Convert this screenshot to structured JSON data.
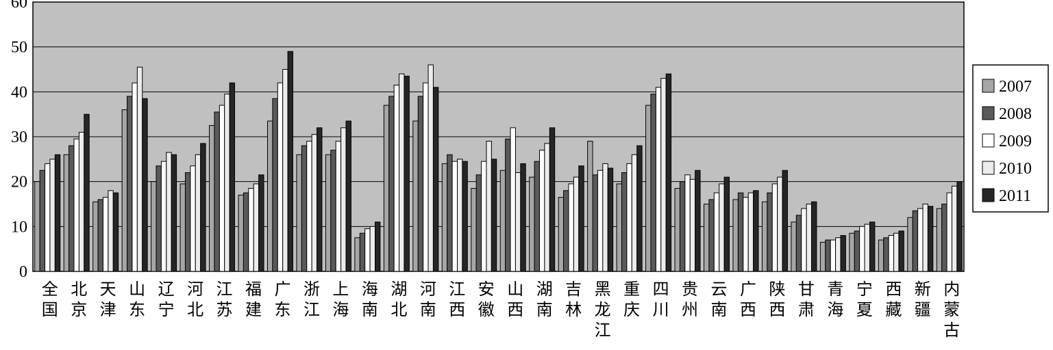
{
  "chart_data": {
    "type": "bar",
    "categories": [
      "全国",
      "北京",
      "天津",
      "山东",
      "辽宁",
      "河北",
      "江苏",
      "福建",
      "广东",
      "浙江",
      "上海",
      "海南",
      "湖北",
      "河南",
      "江西",
      "安徽",
      "山西",
      "湖南",
      "吉林",
      "黑龙江",
      "重庆",
      "四川",
      "贵州",
      "云南",
      "广西",
      "陕西",
      "甘肃",
      "青海",
      "宁夏",
      "西藏",
      "新疆",
      "内蒙古"
    ],
    "series": [
      {
        "name": "2007",
        "color": "#a6a6a6",
        "values": [
          20,
          26,
          15.5,
          36,
          20,
          19.5,
          32.5,
          17,
          33.5,
          26,
          26,
          7.5,
          37,
          33.5,
          24,
          18.5,
          22.5,
          21,
          16.5,
          29,
          19.5,
          37,
          18.5,
          15,
          16,
          15.5,
          11,
          6.5,
          8.5,
          7,
          12,
          14
        ]
      },
      {
        "name": "2008",
        "color": "#5a5a5a",
        "values": [
          22.5,
          28,
          16,
          39,
          23.5,
          22,
          35.5,
          17.5,
          38.5,
          28,
          27,
          8.5,
          39,
          39,
          26,
          21.5,
          29.5,
          24.5,
          18,
          21.5,
          22,
          39.5,
          20,
          16,
          17.5,
          17.5,
          12.5,
          7,
          9,
          7.5,
          13.5,
          15
        ]
      },
      {
        "name": "2009",
        "color": "#ffffff",
        "values": [
          24,
          29.5,
          16.5,
          42,
          24.5,
          23.5,
          37,
          18.5,
          42,
          29,
          29,
          9.5,
          41.5,
          42,
          24.5,
          24.5,
          32,
          27,
          19.5,
          22.5,
          24,
          41,
          21.5,
          17.5,
          16.5,
          19.5,
          14,
          7,
          10,
          8,
          14,
          17.5
        ]
      },
      {
        "name": "2010",
        "color": "#ececec",
        "values": [
          25,
          31,
          18,
          45.5,
          26.5,
          26,
          39.5,
          19.5,
          45,
          30.5,
          32,
          10,
          44,
          46,
          25,
          29,
          22,
          28.5,
          21,
          24,
          26,
          43,
          20.5,
          19.5,
          17.5,
          21,
          15,
          7.5,
          10.5,
          8.5,
          15,
          19
        ]
      },
      {
        "name": "2011",
        "color": "#262626",
        "values": [
          26,
          35,
          17.5,
          38.5,
          26,
          28.5,
          42,
          21.5,
          49,
          32,
          33.5,
          11,
          43.5,
          41,
          24.5,
          25,
          24,
          32,
          23.5,
          23,
          28,
          44,
          22.5,
          21,
          18,
          22.5,
          15.5,
          8,
          11,
          9,
          14.5,
          20
        ]
      }
    ],
    "ylim": [
      0,
      60
    ],
    "yticks": [
      0,
      10,
      20,
      30,
      40,
      50,
      60
    ],
    "grid": true,
    "background": "#c0c0c0",
    "legend": "right"
  }
}
